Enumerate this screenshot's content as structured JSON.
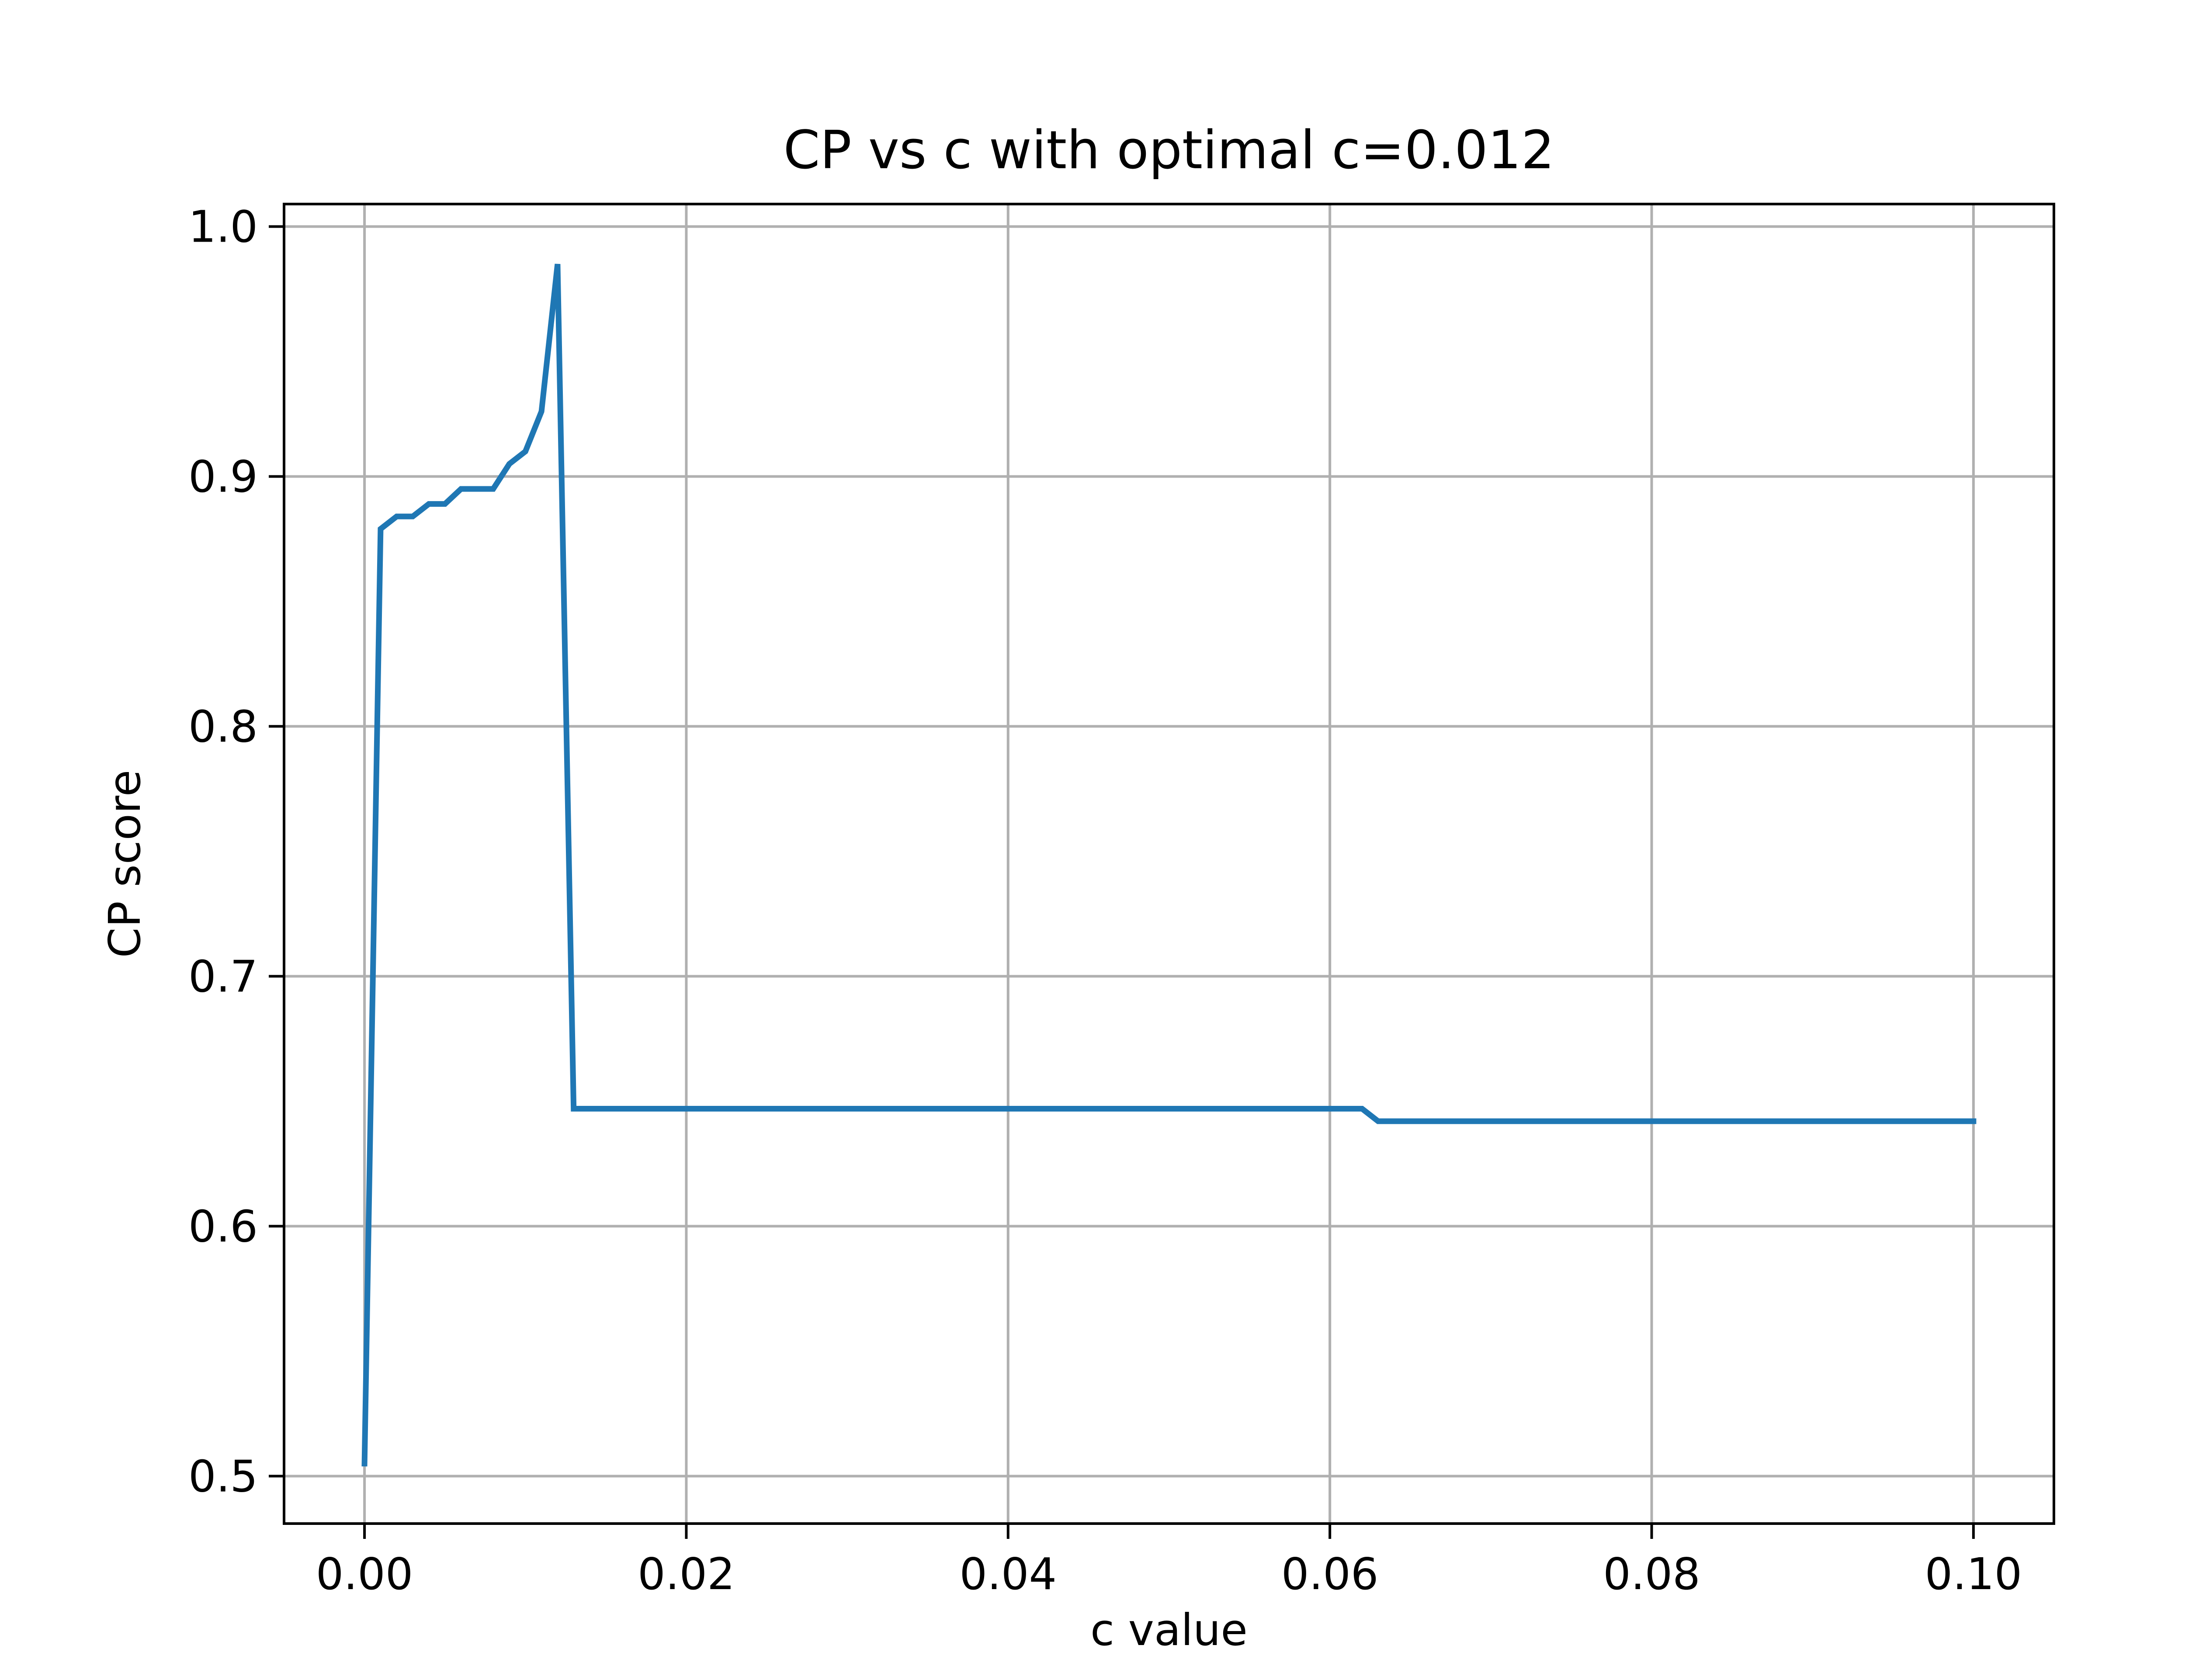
{
  "chart_data": {
    "type": "line",
    "title": "CP vs c with optimal c=0.012",
    "xlabel": "c value",
    "ylabel": "CP score",
    "xlim": [
      -0.005,
      0.105
    ],
    "ylim": [
      0.481,
      1.009
    ],
    "grid": true,
    "x_ticks": [
      0.0,
      0.02,
      0.04,
      0.06,
      0.08,
      0.1
    ],
    "x_tick_labels": [
      "0.00",
      "0.02",
      "0.04",
      "0.06",
      "0.08",
      "0.10"
    ],
    "y_ticks": [
      0.5,
      0.6,
      0.7,
      0.8,
      0.9,
      1.0
    ],
    "y_tick_labels": [
      "0.5",
      "0.6",
      "0.7",
      "0.8",
      "0.9",
      "1.0"
    ],
    "series": [
      {
        "color": "#1f77b4",
        "x": [
          0.0,
          0.001,
          0.002,
          0.003,
          0.004,
          0.005,
          0.006,
          0.007,
          0.008,
          0.009,
          0.01,
          0.011,
          0.012,
          0.013,
          0.062,
          0.063,
          0.1
        ],
        "y": [
          0.505,
          0.879,
          0.884,
          0.884,
          0.889,
          0.889,
          0.895,
          0.895,
          0.895,
          0.905,
          0.91,
          0.926,
          0.985,
          0.647,
          0.647,
          0.642,
          0.642
        ]
      }
    ]
  },
  "colors": {
    "line": "#1f77b4",
    "grid": "#b0b0b0",
    "axes": "#000000",
    "background": "#ffffff"
  }
}
